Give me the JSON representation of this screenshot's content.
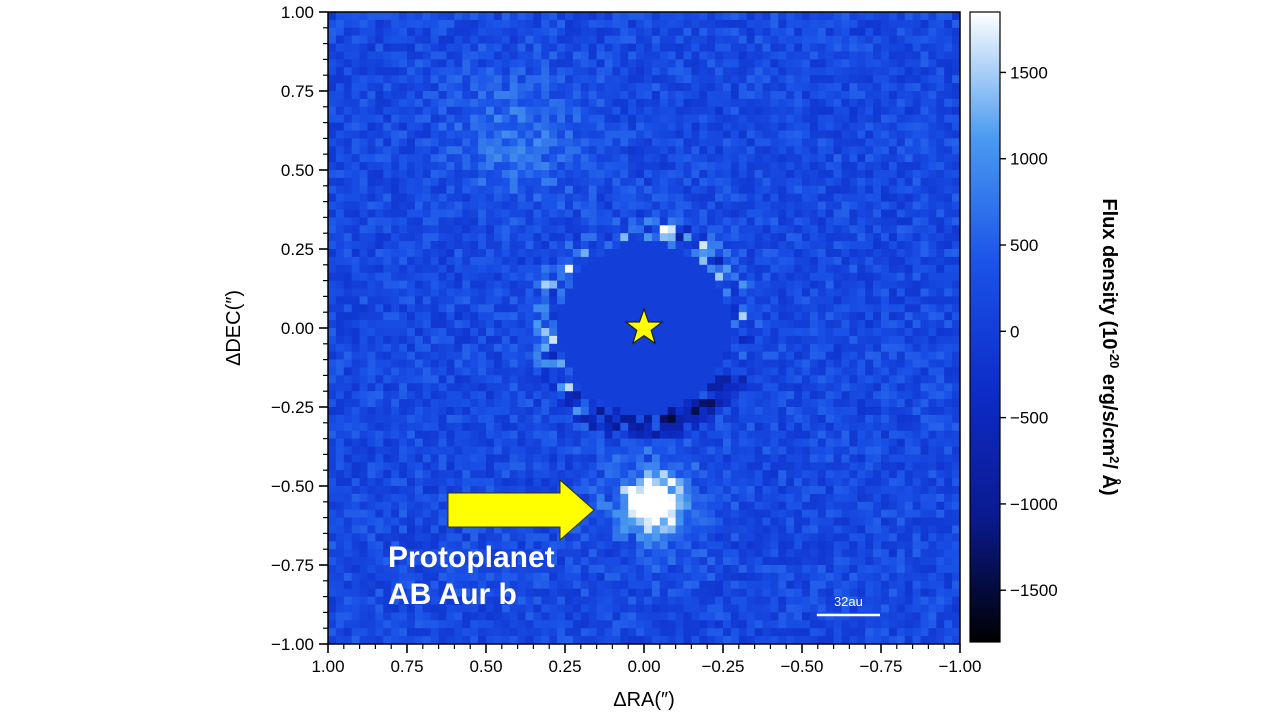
{
  "chart_data": {
    "type": "heatmap",
    "title": "",
    "xlabel": "ΔRA(″)",
    "ylabel": "ΔDEC(″)",
    "xlim": [
      1.0,
      -1.0
    ],
    "ylim": [
      -1.0,
      1.0
    ],
    "x_ticks": [
      1.0,
      0.75,
      0.5,
      0.25,
      0.0,
      -0.25,
      -0.5,
      -0.75,
      -1.0
    ],
    "x_tick_labels": [
      "1.00",
      "0.75",
      "0.50",
      "0.25",
      "0.00",
      "−0.25",
      "−0.50",
      "−0.75",
      "−1.00"
    ],
    "y_ticks": [
      1.0,
      0.75,
      0.5,
      0.25,
      0.0,
      -0.25,
      -0.5,
      -0.75,
      -1.0
    ],
    "y_tick_labels": [
      "1.00",
      "0.75",
      "0.50",
      "0.25",
      "0.00",
      "−0.25",
      "−0.50",
      "−0.75",
      "−1.00"
    ],
    "colorbar": {
      "label_prefix": "Flux density (10",
      "label_exp": "-20",
      "label_mid": " erg/s/cm",
      "label_exp2": "2",
      "label_suffix": "/ Å)",
      "min": -1800,
      "max": 1850,
      "ticks": [
        1500,
        1000,
        500,
        0,
        -500,
        -1000,
        -1500
      ],
      "tick_labels": [
        "1500",
        "1000",
        "500",
        "0",
        "−500",
        "−1000",
        "−1500"
      ],
      "colors": [
        "#000000",
        "#0a1a90",
        "#0d2cc8",
        "#1a52e8",
        "#4a9af0",
        "#ffffff"
      ]
    },
    "features": {
      "star": {
        "x": 0.0,
        "y": 0.0
      },
      "mask_radius": 0.27,
      "protoplanet": {
        "x": -0.03,
        "y": -0.56,
        "flux": 1800
      }
    },
    "annotation": {
      "line1": "Protoplanet",
      "line2": "AB Aur b",
      "arrow_color": "#ffff00"
    },
    "scalebar": {
      "label": "32au",
      "length_arcsec": 0.2
    }
  }
}
